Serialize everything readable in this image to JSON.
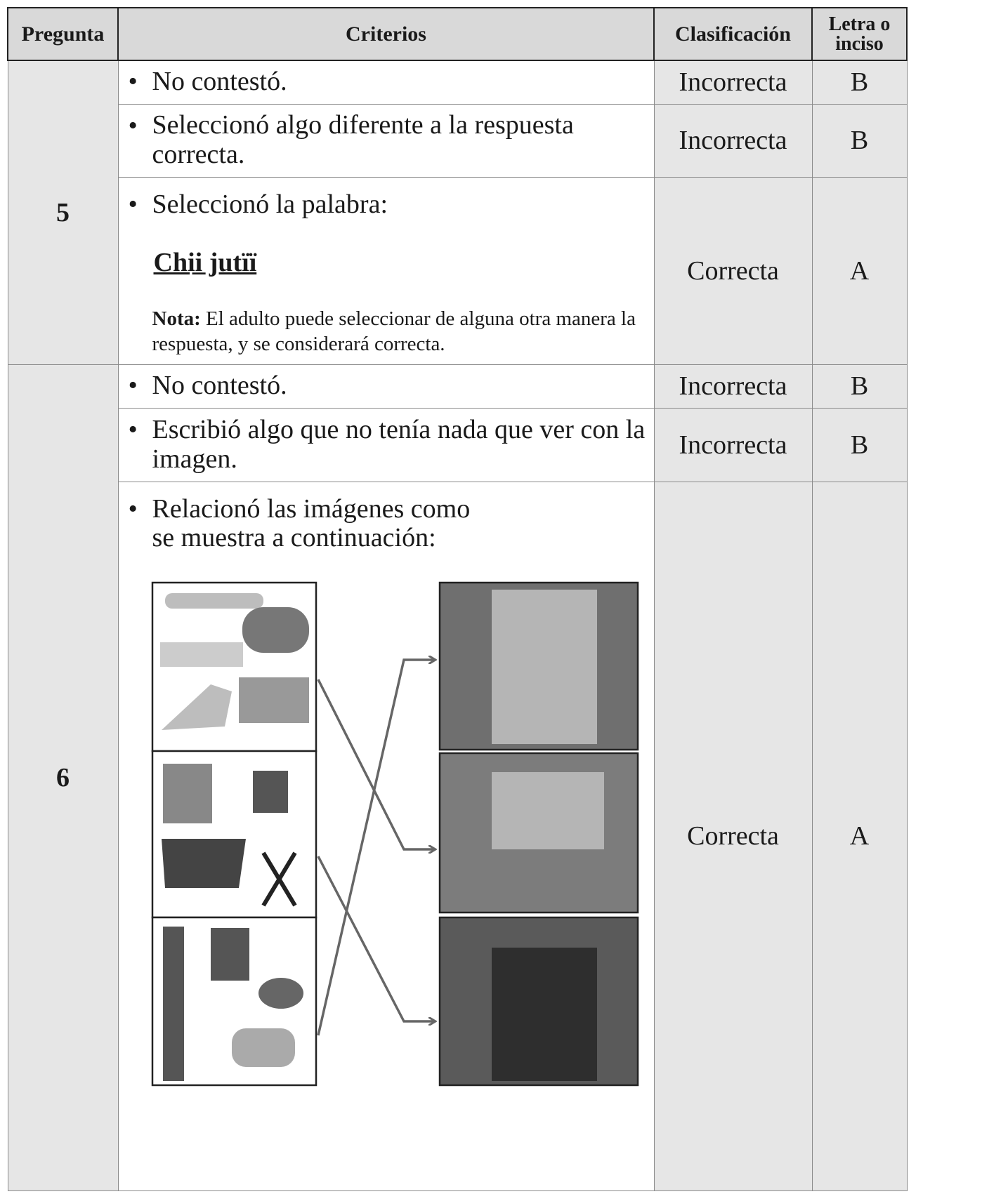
{
  "header": [
    "Pregunta",
    "Criterios",
    "Clasificación",
    "Letra o inciso"
  ],
  "questions": [
    {
      "number": "5",
      "rows": [
        {
          "criterion": "No contestó.",
          "classification": "Incorrecta",
          "letter": "B"
        },
        {
          "criterion": "Seleccionó algo diferente a la respuesta correcta.",
          "classification": "Incorrecta",
          "letter": "B"
        },
        {
          "criterion": "Seleccionó la palabra:",
          "word": "Chii̲ jutïï",
          "note_label": "Nota:",
          "note_text": "El adulto puede seleccionar de alguna otra manera la respuesta, y se considerará correcta.",
          "classification": "Correcta",
          "letter": "A"
        }
      ]
    },
    {
      "number": "6",
      "rows": [
        {
          "criterion": "No contestó.",
          "classification": "Incorrecta",
          "letter": "B"
        },
        {
          "criterion": "Escribió algo que no tenía nada que ver con la imagen.",
          "classification": "Incorrecta",
          "letter": "B"
        },
        {
          "criterion": "Relacionó las imágenes como\nse muestra a continuación:",
          "classification": "Correcta",
          "letter": "A"
        }
      ]
    }
  ]
}
